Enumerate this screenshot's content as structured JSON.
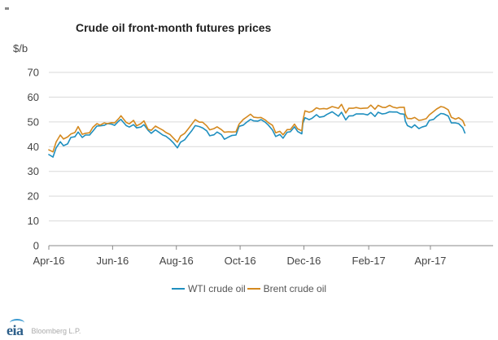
{
  "colors": {
    "wti": "#1f8fbf",
    "brent": "#d4891f",
    "grid": "#d9d9d9",
    "axis": "#888888",
    "logo": "#2d5f8a"
  },
  "footer": {
    "logo_text": "eia",
    "source": "Bloomberg L.P."
  },
  "chart_data": {
    "type": "line",
    "title": "Crude oil front-month futures prices",
    "ylabel": "$/b",
    "ylim": [
      0,
      70
    ],
    "yticks": [
      "0",
      "10",
      "20",
      "30",
      "40",
      "50",
      "60",
      "70"
    ],
    "xlim": [
      "2016-04-01",
      "2017-05-31"
    ],
    "xticks": [
      {
        "label": "Apr-16",
        "date": "2016-04-01"
      },
      {
        "label": "Jun-16",
        "date": "2016-06-01"
      },
      {
        "label": "Aug-16",
        "date": "2016-08-01"
      },
      {
        "label": "Oct-16",
        "date": "2016-10-01"
      },
      {
        "label": "Dec-16",
        "date": "2016-12-01"
      },
      {
        "label": "Feb-17",
        "date": "2017-02-01"
      },
      {
        "label": "Apr-17",
        "date": "2017-04-01"
      }
    ],
    "grid": true,
    "legend_position": "bottom",
    "series": [
      {
        "name": "WTI crude oil",
        "color": "#1f8fbf",
        "points": [
          [
            "2016-04-01",
            36.8
          ],
          [
            "2016-04-05",
            35.8
          ],
          [
            "2016-04-08",
            39.5
          ],
          [
            "2016-04-12",
            42.0
          ],
          [
            "2016-04-15",
            40.4
          ],
          [
            "2016-04-19",
            41.1
          ],
          [
            "2016-04-22",
            43.7
          ],
          [
            "2016-04-26",
            44.0
          ],
          [
            "2016-04-29",
            45.9
          ],
          [
            "2016-05-03",
            43.7
          ],
          [
            "2016-05-06",
            44.7
          ],
          [
            "2016-05-10",
            44.7
          ],
          [
            "2016-05-13",
            46.2
          ],
          [
            "2016-05-17",
            48.3
          ],
          [
            "2016-05-20",
            48.4
          ],
          [
            "2016-05-24",
            48.6
          ],
          [
            "2016-05-27",
            49.3
          ],
          [
            "2016-05-31",
            49.1
          ],
          [
            "2016-06-03",
            48.6
          ],
          [
            "2016-06-07",
            50.4
          ],
          [
            "2016-06-09",
            51.0
          ],
          [
            "2016-06-14",
            48.5
          ],
          [
            "2016-06-17",
            47.9
          ],
          [
            "2016-06-21",
            48.9
          ],
          [
            "2016-06-24",
            47.6
          ],
          [
            "2016-06-28",
            47.9
          ],
          [
            "2016-07-01",
            48.9
          ],
          [
            "2016-07-05",
            46.6
          ],
          [
            "2016-07-08",
            45.4
          ],
          [
            "2016-07-12",
            46.8
          ],
          [
            "2016-07-15",
            45.9
          ],
          [
            "2016-07-19",
            44.7
          ],
          [
            "2016-07-22",
            44.2
          ],
          [
            "2016-07-26",
            42.9
          ],
          [
            "2016-07-29",
            41.6
          ],
          [
            "2016-08-02",
            39.5
          ],
          [
            "2016-08-05",
            41.8
          ],
          [
            "2016-08-09",
            42.8
          ],
          [
            "2016-08-12",
            44.5
          ],
          [
            "2016-08-16",
            46.6
          ],
          [
            "2016-08-19",
            48.5
          ],
          [
            "2016-08-23",
            48.1
          ],
          [
            "2016-08-26",
            47.6
          ],
          [
            "2016-08-30",
            46.4
          ],
          [
            "2016-09-02",
            44.4
          ],
          [
            "2016-09-06",
            44.8
          ],
          [
            "2016-09-09",
            45.9
          ],
          [
            "2016-09-13",
            44.9
          ],
          [
            "2016-09-16",
            43.0
          ],
          [
            "2016-09-20",
            43.9
          ],
          [
            "2016-09-23",
            44.5
          ],
          [
            "2016-09-27",
            44.7
          ],
          [
            "2016-09-30",
            48.2
          ],
          [
            "2016-10-04",
            48.7
          ],
          [
            "2016-10-07",
            49.8
          ],
          [
            "2016-10-11",
            51.0
          ],
          [
            "2016-10-14",
            50.4
          ],
          [
            "2016-10-18",
            50.3
          ],
          [
            "2016-10-21",
            50.9
          ],
          [
            "2016-10-25",
            49.9
          ],
          [
            "2016-10-28",
            48.7
          ],
          [
            "2016-11-01",
            46.7
          ],
          [
            "2016-11-04",
            44.1
          ],
          [
            "2016-11-08",
            44.9
          ],
          [
            "2016-11-11",
            43.4
          ],
          [
            "2016-11-15",
            45.8
          ],
          [
            "2016-11-18",
            46.0
          ],
          [
            "2016-11-22",
            48.0
          ],
          [
            "2016-11-25",
            46.1
          ],
          [
            "2016-11-29",
            45.2
          ],
          [
            "2016-11-30",
            49.4
          ],
          [
            "2016-12-02",
            51.7
          ],
          [
            "2016-12-06",
            50.9
          ],
          [
            "2016-12-09",
            51.5
          ],
          [
            "2016-12-13",
            52.9
          ],
          [
            "2016-12-16",
            51.9
          ],
          [
            "2016-12-20",
            52.2
          ],
          [
            "2016-12-23",
            53.0
          ],
          [
            "2016-12-28",
            54.1
          ],
          [
            "2017-01-03",
            52.3
          ],
          [
            "2017-01-06",
            53.9
          ],
          [
            "2017-01-10",
            50.8
          ],
          [
            "2017-01-13",
            52.4
          ],
          [
            "2017-01-17",
            52.5
          ],
          [
            "2017-01-20",
            53.2
          ],
          [
            "2017-01-24",
            53.2
          ],
          [
            "2017-01-27",
            53.2
          ],
          [
            "2017-01-31",
            52.8
          ],
          [
            "2017-02-03",
            53.8
          ],
          [
            "2017-02-07",
            52.2
          ],
          [
            "2017-02-10",
            53.9
          ],
          [
            "2017-02-14",
            53.2
          ],
          [
            "2017-02-17",
            53.4
          ],
          [
            "2017-02-21",
            54.1
          ],
          [
            "2017-02-24",
            54.0
          ],
          [
            "2017-02-28",
            54.0
          ],
          [
            "2017-03-03",
            53.3
          ],
          [
            "2017-03-07",
            53.1
          ],
          [
            "2017-03-08",
            50.3
          ],
          [
            "2017-03-10",
            48.5
          ],
          [
            "2017-03-14",
            47.7
          ],
          [
            "2017-03-17",
            48.8
          ],
          [
            "2017-03-21",
            47.3
          ],
          [
            "2017-03-24",
            47.9
          ],
          [
            "2017-03-28",
            48.4
          ],
          [
            "2017-03-31",
            50.6
          ],
          [
            "2017-04-04",
            51.0
          ],
          [
            "2017-04-07",
            52.2
          ],
          [
            "2017-04-11",
            53.4
          ],
          [
            "2017-04-14",
            53.2
          ],
          [
            "2017-04-18",
            52.4
          ],
          [
            "2017-04-21",
            49.6
          ],
          [
            "2017-04-25",
            49.6
          ],
          [
            "2017-04-28",
            49.3
          ],
          [
            "2017-05-02",
            47.7
          ],
          [
            "2017-05-04",
            45.5
          ]
        ]
      },
      {
        "name": "Brent crude oil",
        "color": "#d4891f",
        "points": [
          [
            "2016-04-01",
            38.7
          ],
          [
            "2016-04-05",
            37.9
          ],
          [
            "2016-04-08",
            41.9
          ],
          [
            "2016-04-12",
            44.7
          ],
          [
            "2016-04-15",
            43.1
          ],
          [
            "2016-04-19",
            43.9
          ],
          [
            "2016-04-22",
            45.1
          ],
          [
            "2016-04-26",
            45.7
          ],
          [
            "2016-04-29",
            48.1
          ],
          [
            "2016-05-03",
            45.0
          ],
          [
            "2016-05-06",
            45.4
          ],
          [
            "2016-05-10",
            45.6
          ],
          [
            "2016-05-13",
            47.8
          ],
          [
            "2016-05-17",
            49.3
          ],
          [
            "2016-05-20",
            48.7
          ],
          [
            "2016-05-24",
            49.6
          ],
          [
            "2016-05-27",
            49.3
          ],
          [
            "2016-05-31",
            49.7
          ],
          [
            "2016-06-03",
            49.6
          ],
          [
            "2016-06-07",
            51.4
          ],
          [
            "2016-06-09",
            52.5
          ],
          [
            "2016-06-14",
            49.8
          ],
          [
            "2016-06-17",
            49.2
          ],
          [
            "2016-06-21",
            50.6
          ],
          [
            "2016-06-24",
            48.4
          ],
          [
            "2016-06-28",
            49.3
          ],
          [
            "2016-07-01",
            50.4
          ],
          [
            "2016-07-05",
            47.0
          ],
          [
            "2016-07-08",
            46.6
          ],
          [
            "2016-07-12",
            48.3
          ],
          [
            "2016-07-15",
            47.6
          ],
          [
            "2016-07-19",
            46.7
          ],
          [
            "2016-07-22",
            45.7
          ],
          [
            "2016-07-26",
            44.9
          ],
          [
            "2016-07-29",
            43.5
          ],
          [
            "2016-08-02",
            41.8
          ],
          [
            "2016-08-05",
            44.3
          ],
          [
            "2016-08-09",
            45.4
          ],
          [
            "2016-08-12",
            47.0
          ],
          [
            "2016-08-16",
            49.2
          ],
          [
            "2016-08-19",
            50.9
          ],
          [
            "2016-08-23",
            49.9
          ],
          [
            "2016-08-26",
            49.9
          ],
          [
            "2016-08-30",
            48.4
          ],
          [
            "2016-09-02",
            46.8
          ],
          [
            "2016-09-06",
            47.3
          ],
          [
            "2016-09-09",
            48.0
          ],
          [
            "2016-09-13",
            46.9
          ],
          [
            "2016-09-16",
            45.8
          ],
          [
            "2016-09-20",
            46.0
          ],
          [
            "2016-09-23",
            45.9
          ],
          [
            "2016-09-27",
            46.0
          ],
          [
            "2016-09-30",
            49.1
          ],
          [
            "2016-10-04",
            51.0
          ],
          [
            "2016-10-07",
            51.9
          ],
          [
            "2016-10-11",
            53.1
          ],
          [
            "2016-10-14",
            51.9
          ],
          [
            "2016-10-18",
            51.7
          ],
          [
            "2016-10-21",
            51.8
          ],
          [
            "2016-10-25",
            50.8
          ],
          [
            "2016-10-28",
            49.7
          ],
          [
            "2016-11-01",
            48.6
          ],
          [
            "2016-11-04",
            45.6
          ],
          [
            "2016-11-08",
            46.2
          ],
          [
            "2016-11-11",
            44.8
          ],
          [
            "2016-11-15",
            46.9
          ],
          [
            "2016-11-18",
            46.9
          ],
          [
            "2016-11-22",
            49.1
          ],
          [
            "2016-11-25",
            47.2
          ],
          [
            "2016-11-29",
            46.4
          ],
          [
            "2016-11-30",
            50.5
          ],
          [
            "2016-12-02",
            54.5
          ],
          [
            "2016-12-06",
            53.9
          ],
          [
            "2016-12-09",
            54.3
          ],
          [
            "2016-12-13",
            55.7
          ],
          [
            "2016-12-16",
            55.2
          ],
          [
            "2016-12-20",
            55.4
          ],
          [
            "2016-12-23",
            55.2
          ],
          [
            "2016-12-28",
            56.2
          ],
          [
            "2017-01-03",
            55.5
          ],
          [
            "2017-01-06",
            57.1
          ],
          [
            "2017-01-10",
            53.6
          ],
          [
            "2017-01-13",
            55.5
          ],
          [
            "2017-01-17",
            55.5
          ],
          [
            "2017-01-20",
            55.8
          ],
          [
            "2017-01-24",
            55.4
          ],
          [
            "2017-01-27",
            55.5
          ],
          [
            "2017-01-31",
            55.6
          ],
          [
            "2017-02-03",
            56.8
          ],
          [
            "2017-02-07",
            55.1
          ],
          [
            "2017-02-10",
            56.7
          ],
          [
            "2017-02-14",
            55.9
          ],
          [
            "2017-02-17",
            55.8
          ],
          [
            "2017-02-21",
            56.7
          ],
          [
            "2017-02-24",
            56.0
          ],
          [
            "2017-02-28",
            55.6
          ],
          [
            "2017-03-03",
            55.9
          ],
          [
            "2017-03-07",
            55.9
          ],
          [
            "2017-03-08",
            53.1
          ],
          [
            "2017-03-10",
            51.4
          ],
          [
            "2017-03-14",
            51.3
          ],
          [
            "2017-03-17",
            51.8
          ],
          [
            "2017-03-21",
            50.6
          ],
          [
            "2017-03-24",
            50.8
          ],
          [
            "2017-03-28",
            51.3
          ],
          [
            "2017-03-31",
            52.8
          ],
          [
            "2017-04-04",
            54.2
          ],
          [
            "2017-04-07",
            55.2
          ],
          [
            "2017-04-11",
            56.2
          ],
          [
            "2017-04-14",
            55.9
          ],
          [
            "2017-04-18",
            54.9
          ],
          [
            "2017-04-21",
            51.9
          ],
          [
            "2017-04-25",
            51.1
          ],
          [
            "2017-04-28",
            51.7
          ],
          [
            "2017-05-02",
            50.5
          ],
          [
            "2017-05-04",
            48.5
          ]
        ]
      }
    ]
  }
}
